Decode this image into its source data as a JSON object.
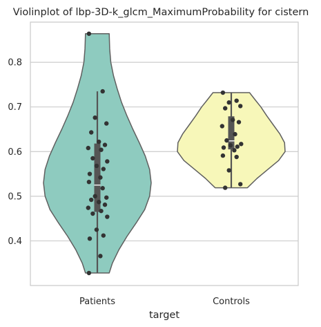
{
  "chart_data": {
    "type": "violin",
    "title": "Violinplot of lbp-3D-k_glcm_MaximumProbability for cistern",
    "xlabel": "target",
    "ylabel": "",
    "categories": [
      "Patients",
      "Controls"
    ],
    "ylim": [
      0.3,
      0.89
    ],
    "yticks": [
      0.4,
      0.5,
      0.6,
      0.7,
      0.8
    ],
    "ytick_labels": [
      "0.4",
      "0.5",
      "0.6",
      "0.7",
      "0.8"
    ],
    "grid": "horizontal",
    "colors": {
      "Patients": "#8ecbbf",
      "Controls": "#f7f7b9",
      "outline": "#5f5f5f",
      "points": "#333333",
      "grid": "#cccccc",
      "box": "#555555",
      "median": "#f2f2f2"
    },
    "series": [
      {
        "category": "Patients",
        "violin_range": [
          0.328,
          0.864
        ],
        "density_profile": [
          [
            0.328,
            0.22
          ],
          [
            0.35,
            0.28
          ],
          [
            0.38,
            0.4
          ],
          [
            0.41,
            0.55
          ],
          [
            0.44,
            0.72
          ],
          [
            0.47,
            0.88
          ],
          [
            0.5,
            0.97
          ],
          [
            0.53,
            1.0
          ],
          [
            0.56,
            0.97
          ],
          [
            0.59,
            0.89
          ],
          [
            0.62,
            0.78
          ],
          [
            0.65,
            0.66
          ],
          [
            0.68,
            0.55
          ],
          [
            0.71,
            0.45
          ],
          [
            0.74,
            0.37
          ],
          [
            0.77,
            0.3
          ],
          [
            0.8,
            0.25
          ],
          [
            0.83,
            0.23
          ],
          [
            0.864,
            0.22
          ]
        ],
        "box": {
          "q1": 0.465,
          "median": 0.525,
          "q3": 0.618,
          "whisker_low": 0.328,
          "whisker_high": 0.735
        },
        "points": [
          0.864,
          0.735,
          0.676,
          0.663,
          0.643,
          0.622,
          0.615,
          0.608,
          0.604,
          0.585,
          0.578,
          0.568,
          0.561,
          0.55,
          0.542,
          0.532,
          0.518,
          0.5,
          0.497,
          0.492,
          0.487,
          0.481,
          0.474,
          0.467,
          0.461,
          0.454,
          0.425,
          0.412,
          0.405,
          0.366,
          0.328
        ]
      },
      {
        "category": "Controls",
        "violin_range": [
          0.519,
          0.732
        ],
        "density_profile": [
          [
            0.519,
            0.3
          ],
          [
            0.54,
            0.48
          ],
          [
            0.56,
            0.68
          ],
          [
            0.58,
            0.88
          ],
          [
            0.6,
            1.0
          ],
          [
            0.62,
            0.99
          ],
          [
            0.64,
            0.9
          ],
          [
            0.66,
            0.78
          ],
          [
            0.68,
            0.66
          ],
          [
            0.7,
            0.55
          ],
          [
            0.715,
            0.45
          ],
          [
            0.732,
            0.34
          ]
        ],
        "box": {
          "q1": 0.605,
          "median": 0.624,
          "q3": 0.679,
          "whisker_low": 0.519,
          "whisker_high": 0.732
        },
        "points": [
          0.732,
          0.714,
          0.71,
          0.702,
          0.697,
          0.671,
          0.666,
          0.657,
          0.639,
          0.625,
          0.617,
          0.614,
          0.611,
          0.609,
          0.603,
          0.591,
          0.588,
          0.558,
          0.527,
          0.519
        ]
      }
    ]
  }
}
